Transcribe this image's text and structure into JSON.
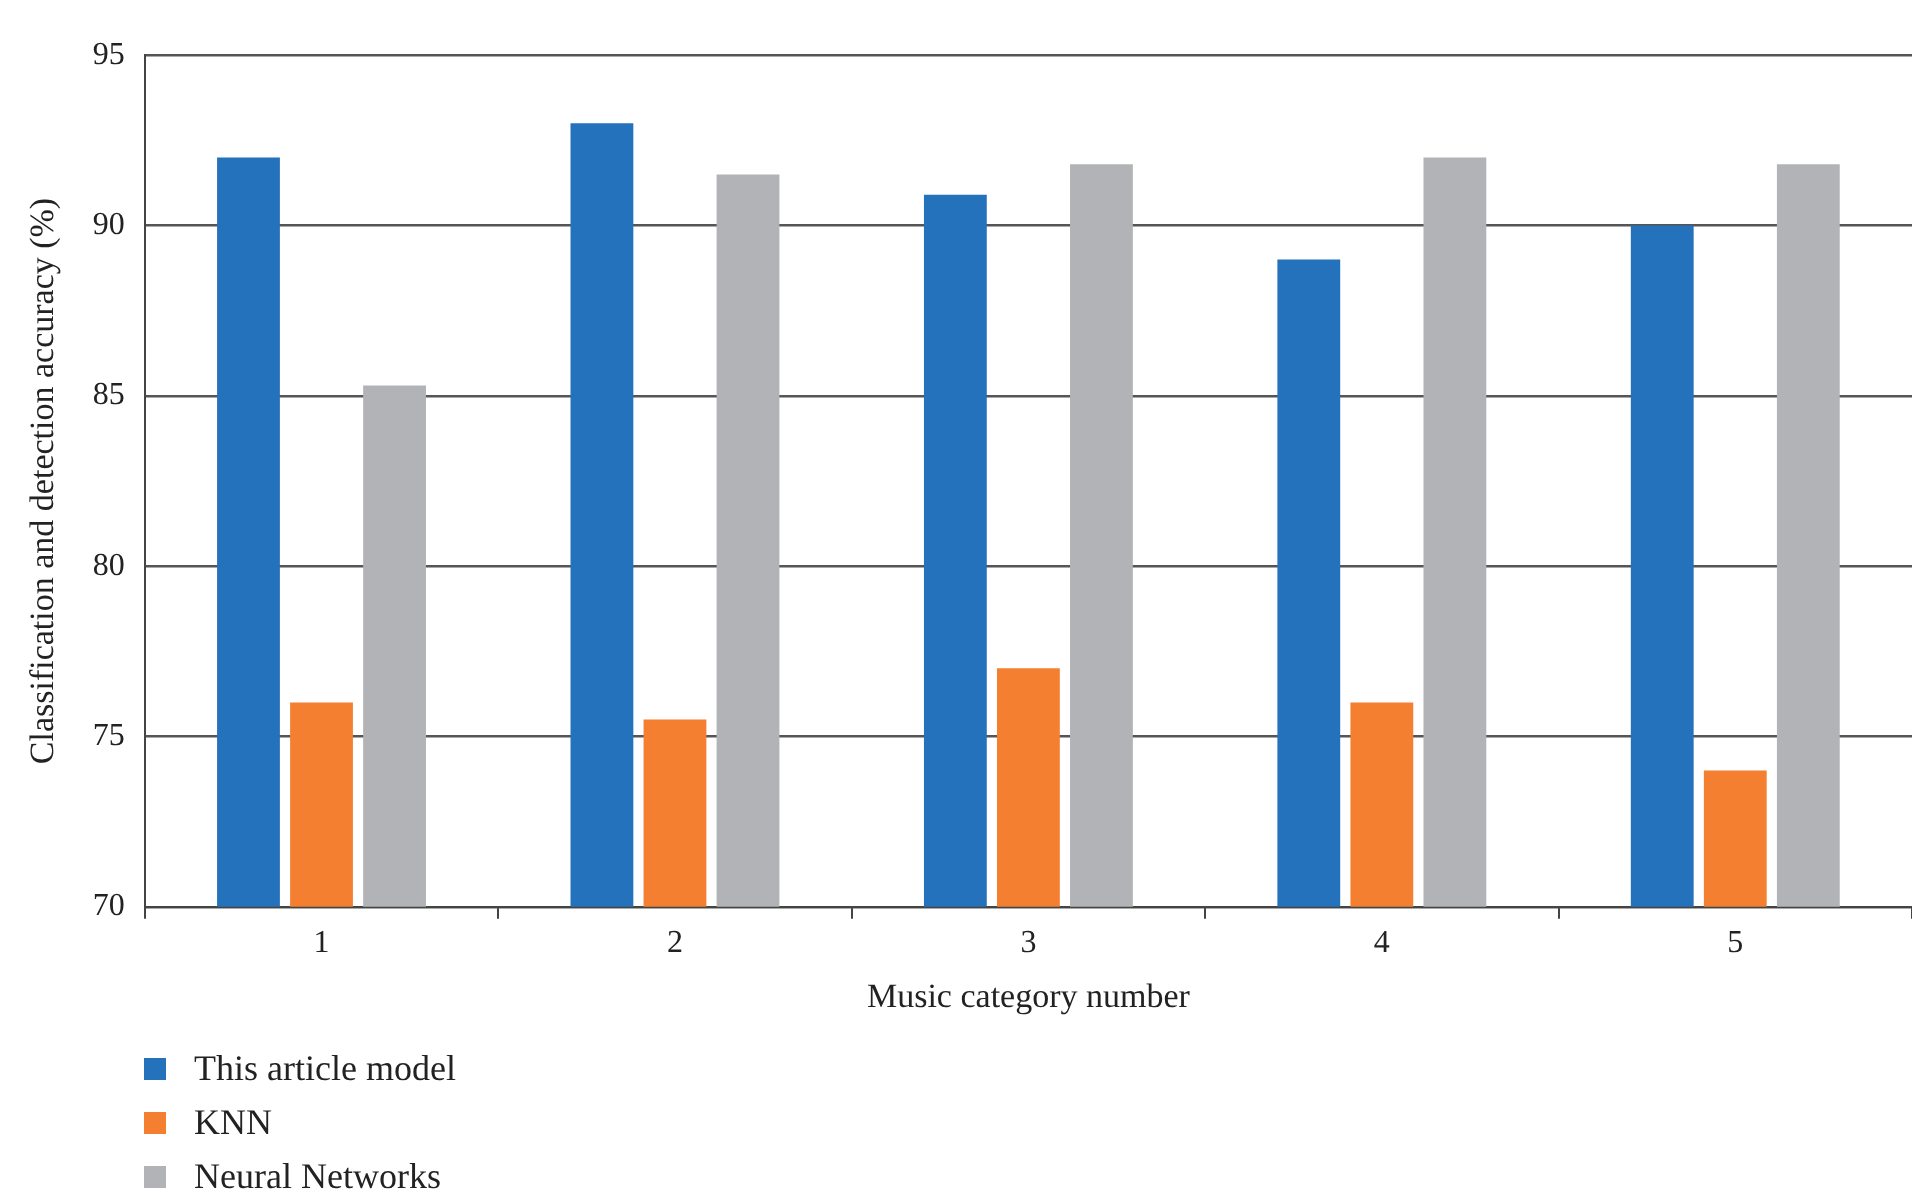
{
  "chart_data": {
    "type": "bar",
    "xlabel": "Music category number",
    "ylabel": "Classification and detection accuracy (%)",
    "categories": [
      "1",
      "2",
      "3",
      "4",
      "5"
    ],
    "series": [
      {
        "name": "This article model",
        "color": "#2372bb",
        "values": [
          92,
          93,
          90.9,
          89,
          90
        ]
      },
      {
        "name": "KNN",
        "color": "#f47f30",
        "values": [
          76,
          75.5,
          77,
          76,
          74
        ]
      },
      {
        "name": "Neural Networks",
        "color": "#b1b3b6",
        "values": [
          85.3,
          91.5,
          91.8,
          92,
          91.8
        ]
      }
    ],
    "ylim": [
      70,
      95
    ],
    "yticks": [
      70,
      75,
      80,
      85,
      90,
      95
    ],
    "grid": "y",
    "legend": "bottom left"
  }
}
